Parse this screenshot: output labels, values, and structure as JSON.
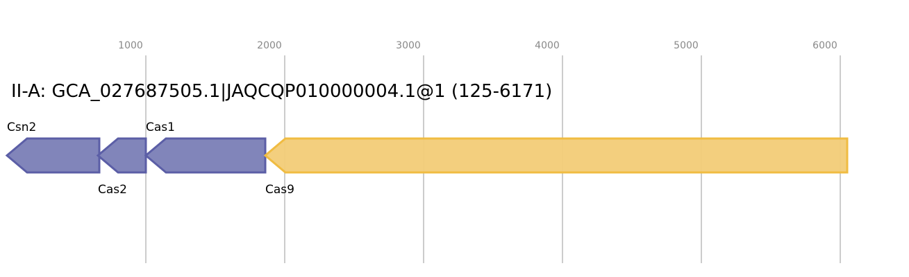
{
  "title": "II-A: GCA_027687505.1|JAQCQP010000004.1@1 (125-6171)",
  "axis": {
    "ticks": [
      1000,
      2000,
      3000,
      4000,
      5000,
      6000
    ],
    "gridlines": true
  },
  "colors": {
    "cas_fill": "#7a7eb6",
    "cas_stroke": "#5b5ea6",
    "cas9_fill": "#f2cc77",
    "cas9_stroke": "#f0bc42",
    "grid": "#bbbbbb",
    "tick_text": "#888888"
  },
  "genes": [
    {
      "name": "Csn2",
      "start": 0,
      "end": 665,
      "strand": "-",
      "label_pos": "above",
      "color": "cas"
    },
    {
      "name": "Cas2",
      "start": 655,
      "end": 1000,
      "strand": "-",
      "label_pos": "below",
      "color": "cas"
    },
    {
      "name": "Cas1",
      "start": 1000,
      "end": 1860,
      "strand": "-",
      "label_pos": "above",
      "color": "cas"
    },
    {
      "name": "Cas9",
      "start": 1860,
      "end": 6050,
      "strand": "-",
      "label_pos": "below",
      "color": "cas9"
    }
  ]
}
